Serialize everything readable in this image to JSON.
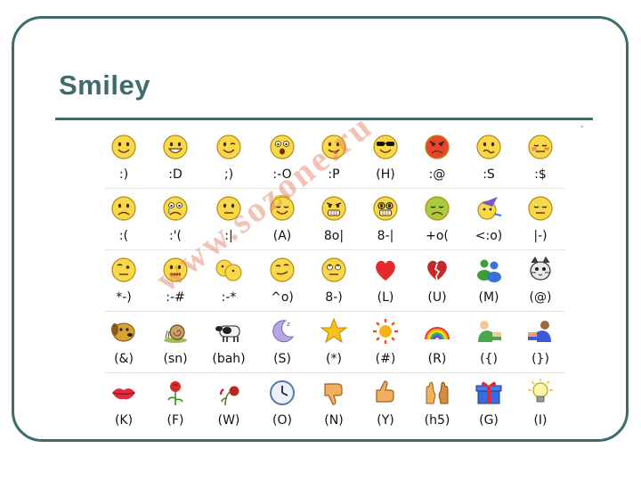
{
  "slide": {
    "title": "Smiley",
    "watermark": "www.sozone.ru"
  },
  "rows": [
    [
      {
        "code": ":)",
        "icon": "smile-icon",
        "face": "smile"
      },
      {
        "code": ":D",
        "icon": "big-grin-icon",
        "face": "grin"
      },
      {
        "code": ";)",
        "icon": "wink-icon",
        "face": "wink"
      },
      {
        "code": ":-O",
        "icon": "surprised-icon",
        "face": "surprised"
      },
      {
        "code": ":P",
        "icon": "tongue-out-icon",
        "face": "tongue"
      },
      {
        "code": "(H)",
        "icon": "cool-sunglasses-icon",
        "face": "cool"
      },
      {
        "code": ":@",
        "icon": "angry-icon",
        "face": "angry"
      },
      {
        "code": ":S",
        "icon": "confused-icon",
        "face": "confused"
      },
      {
        "code": ":$",
        "icon": "embarrassed-icon",
        "face": "embarrassed"
      }
    ],
    [
      {
        "code": ":(",
        "icon": "sad-icon",
        "face": "sad"
      },
      {
        "code": ":'(",
        "icon": "crying-icon",
        "face": "cry"
      },
      {
        "code": ":|",
        "icon": "disappointed-icon",
        "face": "neutral"
      },
      {
        "code": "(A)",
        "icon": "angel-icon",
        "face": "angel"
      },
      {
        "code": "8o|",
        "icon": "baring-teeth-icon",
        "face": "teeth"
      },
      {
        "code": "8-|",
        "icon": "nerd-icon",
        "face": "nerd"
      },
      {
        "code": "+o(",
        "icon": "sick-icon",
        "face": "sick"
      },
      {
        "code": "<:o)",
        "icon": "party-icon",
        "face": "party"
      },
      {
        "code": "|-)",
        "icon": "sleepy-icon",
        "face": "sleepy"
      }
    ],
    [
      {
        "code": "*-)",
        "icon": "thinking-icon",
        "face": "thinking"
      },
      {
        "code": ":-#",
        "icon": "dont-tell-icon",
        "face": "secret"
      },
      {
        "code": ":-*",
        "icon": "secret-telling-icon",
        "face": "whisper"
      },
      {
        "code": "^o)",
        "icon": "sarcastic-icon",
        "face": "sarcastic"
      },
      {
        "code": "8-)",
        "icon": "eye-rolling-icon",
        "face": "eyeroll"
      },
      {
        "code": "(L)",
        "icon": "red-heart-icon",
        "face": "heart"
      },
      {
        "code": "(U)",
        "icon": "broken-heart-icon",
        "face": "broken"
      },
      {
        "code": "(M)",
        "icon": "messenger-icon",
        "face": "msn"
      },
      {
        "code": "(@)",
        "icon": "cat-face-icon",
        "face": "cat"
      }
    ],
    [
      {
        "code": "(&)",
        "icon": "dog-face-icon",
        "face": "dog"
      },
      {
        "code": "(sn)",
        "icon": "snail-icon",
        "face": "snail"
      },
      {
        "code": "(bah)",
        "icon": "black-sheep-icon",
        "face": "sheep"
      },
      {
        "code": "(S)",
        "icon": "sleeping-moon-icon",
        "face": "moon"
      },
      {
        "code": "(*)",
        "icon": "star-icon",
        "face": "star"
      },
      {
        "code": "(#)",
        "icon": "sun-icon",
        "face": "sun"
      },
      {
        "code": "(R)",
        "icon": "rainbow-icon",
        "face": "rainbow"
      },
      {
        "code": "({)",
        "icon": "boy-hug-icon",
        "face": "hugleft"
      },
      {
        "code": "(})",
        "icon": "girl-hug-icon",
        "face": "hugright"
      }
    ],
    [
      {
        "code": "(K)",
        "icon": "red-lips-icon",
        "face": "lips"
      },
      {
        "code": "(F)",
        "icon": "red-rose-icon",
        "face": "rose"
      },
      {
        "code": "(W)",
        "icon": "wilted-rose-icon",
        "face": "wilted"
      },
      {
        "code": "(O)",
        "icon": "clock-icon",
        "face": "clock"
      },
      {
        "code": "(N)",
        "icon": "thumbs-down-icon",
        "face": "thumbsdown"
      },
      {
        "code": "(Y)",
        "icon": "thumbs-up-icon",
        "face": "thumbsup"
      },
      {
        "code": "(h5)",
        "icon": "high-five-icon",
        "face": "highfive"
      },
      {
        "code": "(G)",
        "icon": "gift-icon",
        "face": "gift"
      },
      {
        "code": "(I)",
        "icon": "light-bulb-icon",
        "face": "bulb"
      }
    ]
  ]
}
